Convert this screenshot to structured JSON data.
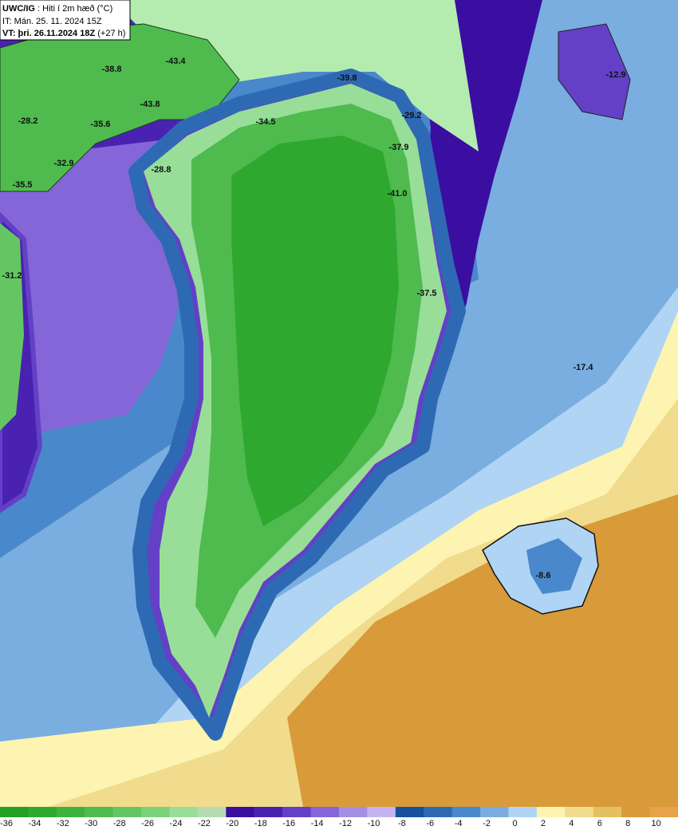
{
  "header": {
    "model": "UWC/IG",
    "field": ": Hiti í 2m hæð (°C)",
    "init": "IT: Mán. 25. 11. 2024 15Z",
    "valid": "VT: þri. 26.11.2024 18Z",
    "lead": "(+27 h)"
  },
  "colorbar": {
    "ticks": [
      -36,
      -34,
      -32,
      -30,
      -28,
      -26,
      -24,
      -22,
      -20,
      -18,
      -16,
      -14,
      -12,
      -10,
      -8,
      -6,
      -4,
      -2,
      0,
      2,
      4,
      6,
      8,
      10
    ],
    "colors": [
      "#23a023",
      "#2fa82f",
      "#3db23d",
      "#4fbb4f",
      "#63c663",
      "#7ad27a",
      "#98de98",
      "#b4dcb0",
      "#3a0ea0",
      "#4a22b2",
      "#6340c6",
      "#8466d8",
      "#a58ee6",
      "#c6b4f2",
      "#16509c",
      "#2e6ab4",
      "#4a88cc",
      "#7aaee0",
      "#b0d4f4",
      "#fcf4b0",
      "#f0dc8c",
      "#e4c060",
      "#d99a3a",
      "#e8a24a"
    ]
  },
  "map_labels": [
    "-43.4",
    "-38.8",
    "-39.8",
    "-43.8",
    "-35.6",
    "-34.5",
    "-29.2",
    "-28.2",
    "-37.9",
    "-32.9",
    "-28.8",
    "-41.0",
    "-35.5",
    "-12.9",
    "-31.2",
    "-37.5",
    "-17.4",
    "-8.6"
  ]
}
